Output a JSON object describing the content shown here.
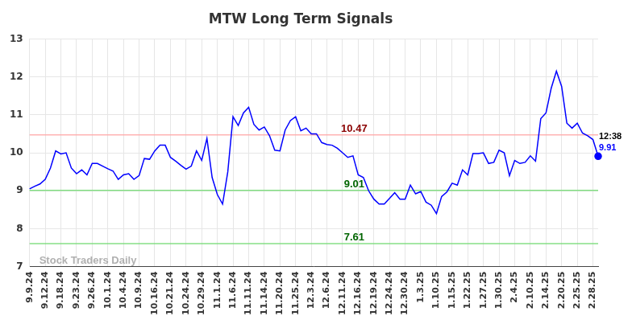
{
  "chart_data": {
    "type": "line",
    "title": "MTW Long Term Signals",
    "categories": [
      "9.9.24",
      null,
      null,
      "9.12.24",
      null,
      null,
      "9.18.24",
      null,
      null,
      "9.23.24",
      null,
      null,
      "9.26.24",
      null,
      null,
      "10.1.24",
      null,
      null,
      "10.4.24",
      null,
      null,
      "10.9.24",
      null,
      null,
      "10.16.24",
      null,
      null,
      "10.21.24",
      null,
      null,
      "10.24.24",
      null,
      null,
      "10.29.24",
      null,
      null,
      "11.1.24",
      null,
      null,
      "11.6.24",
      null,
      null,
      "11.11.24",
      null,
      null,
      "11.14.24",
      null,
      null,
      "11.20.24",
      null,
      null,
      "11.25.24",
      null,
      null,
      "12.3.24",
      null,
      null,
      "12.6.24",
      null,
      null,
      "12.11.24",
      null,
      null,
      "12.16.24",
      null,
      null,
      "12.19.24",
      null,
      null,
      "12.24.24",
      null,
      null,
      "12.30.24",
      null,
      null,
      "1.3.25",
      null,
      null,
      "1.10.25",
      null,
      null,
      "1.15.25",
      null,
      null,
      "1.22.25",
      null,
      null,
      "1.27.25",
      null,
      null,
      "1.30.25",
      null,
      null,
      "2.4.25",
      null,
      null,
      "2.10.25",
      null,
      null,
      "2.14.25",
      null,
      null,
      "2.20.25",
      null,
      null,
      "2.25.25",
      null,
      null,
      "2.28.25",
      null
    ],
    "values": [
      9.05,
      9.12,
      9.18,
      9.3,
      9.6,
      10.05,
      9.97,
      10.0,
      9.6,
      9.45,
      9.55,
      9.42,
      9.72,
      9.72,
      9.65,
      9.58,
      9.52,
      9.3,
      9.42,
      9.45,
      9.3,
      9.4,
      9.85,
      9.83,
      10.05,
      10.2,
      10.2,
      9.88,
      9.78,
      9.67,
      9.57,
      9.65,
      10.05,
      9.8,
      10.38,
      9.35,
      8.9,
      8.65,
      9.5,
      10.95,
      10.72,
      11.05,
      11.2,
      10.75,
      10.6,
      10.68,
      10.45,
      10.07,
      10.05,
      10.6,
      10.85,
      10.95,
      10.58,
      10.65,
      10.5,
      10.5,
      10.27,
      10.22,
      10.2,
      10.12,
      10.0,
      9.88,
      9.92,
      9.42,
      9.35,
      9.0,
      8.78,
      8.65,
      8.65,
      8.8,
      8.95,
      8.78,
      8.78,
      9.15,
      8.92,
      8.98,
      8.7,
      8.62,
      8.4,
      8.85,
      8.97,
      9.2,
      9.15,
      9.55,
      9.42,
      9.98,
      9.98,
      10.0,
      9.72,
      9.75,
      10.07,
      10.0,
      9.4,
      9.8,
      9.72,
      9.75,
      9.92,
      9.78,
      10.9,
      11.05,
      11.7,
      12.15,
      11.75,
      10.78,
      10.65,
      10.78,
      10.52,
      10.45,
      10.35,
      9.91
    ],
    "color": "#0000ff",
    "ylim": [
      7,
      13
    ],
    "yticks": [
      7,
      8,
      9,
      10,
      11,
      12,
      13
    ],
    "grid": true,
    "levels": [
      {
        "value": 10.47,
        "label": "10.47",
        "color": "#8b0000"
      },
      {
        "value": 9.01,
        "label": "9.01",
        "color": "#006400"
      },
      {
        "value": 7.61,
        "label": "7.61",
        "color": "#006400"
      }
    ],
    "last_point": {
      "time_label": "12:38",
      "value": 9.91,
      "label": "9.91"
    },
    "watermark": "Stock Traders Daily"
  }
}
